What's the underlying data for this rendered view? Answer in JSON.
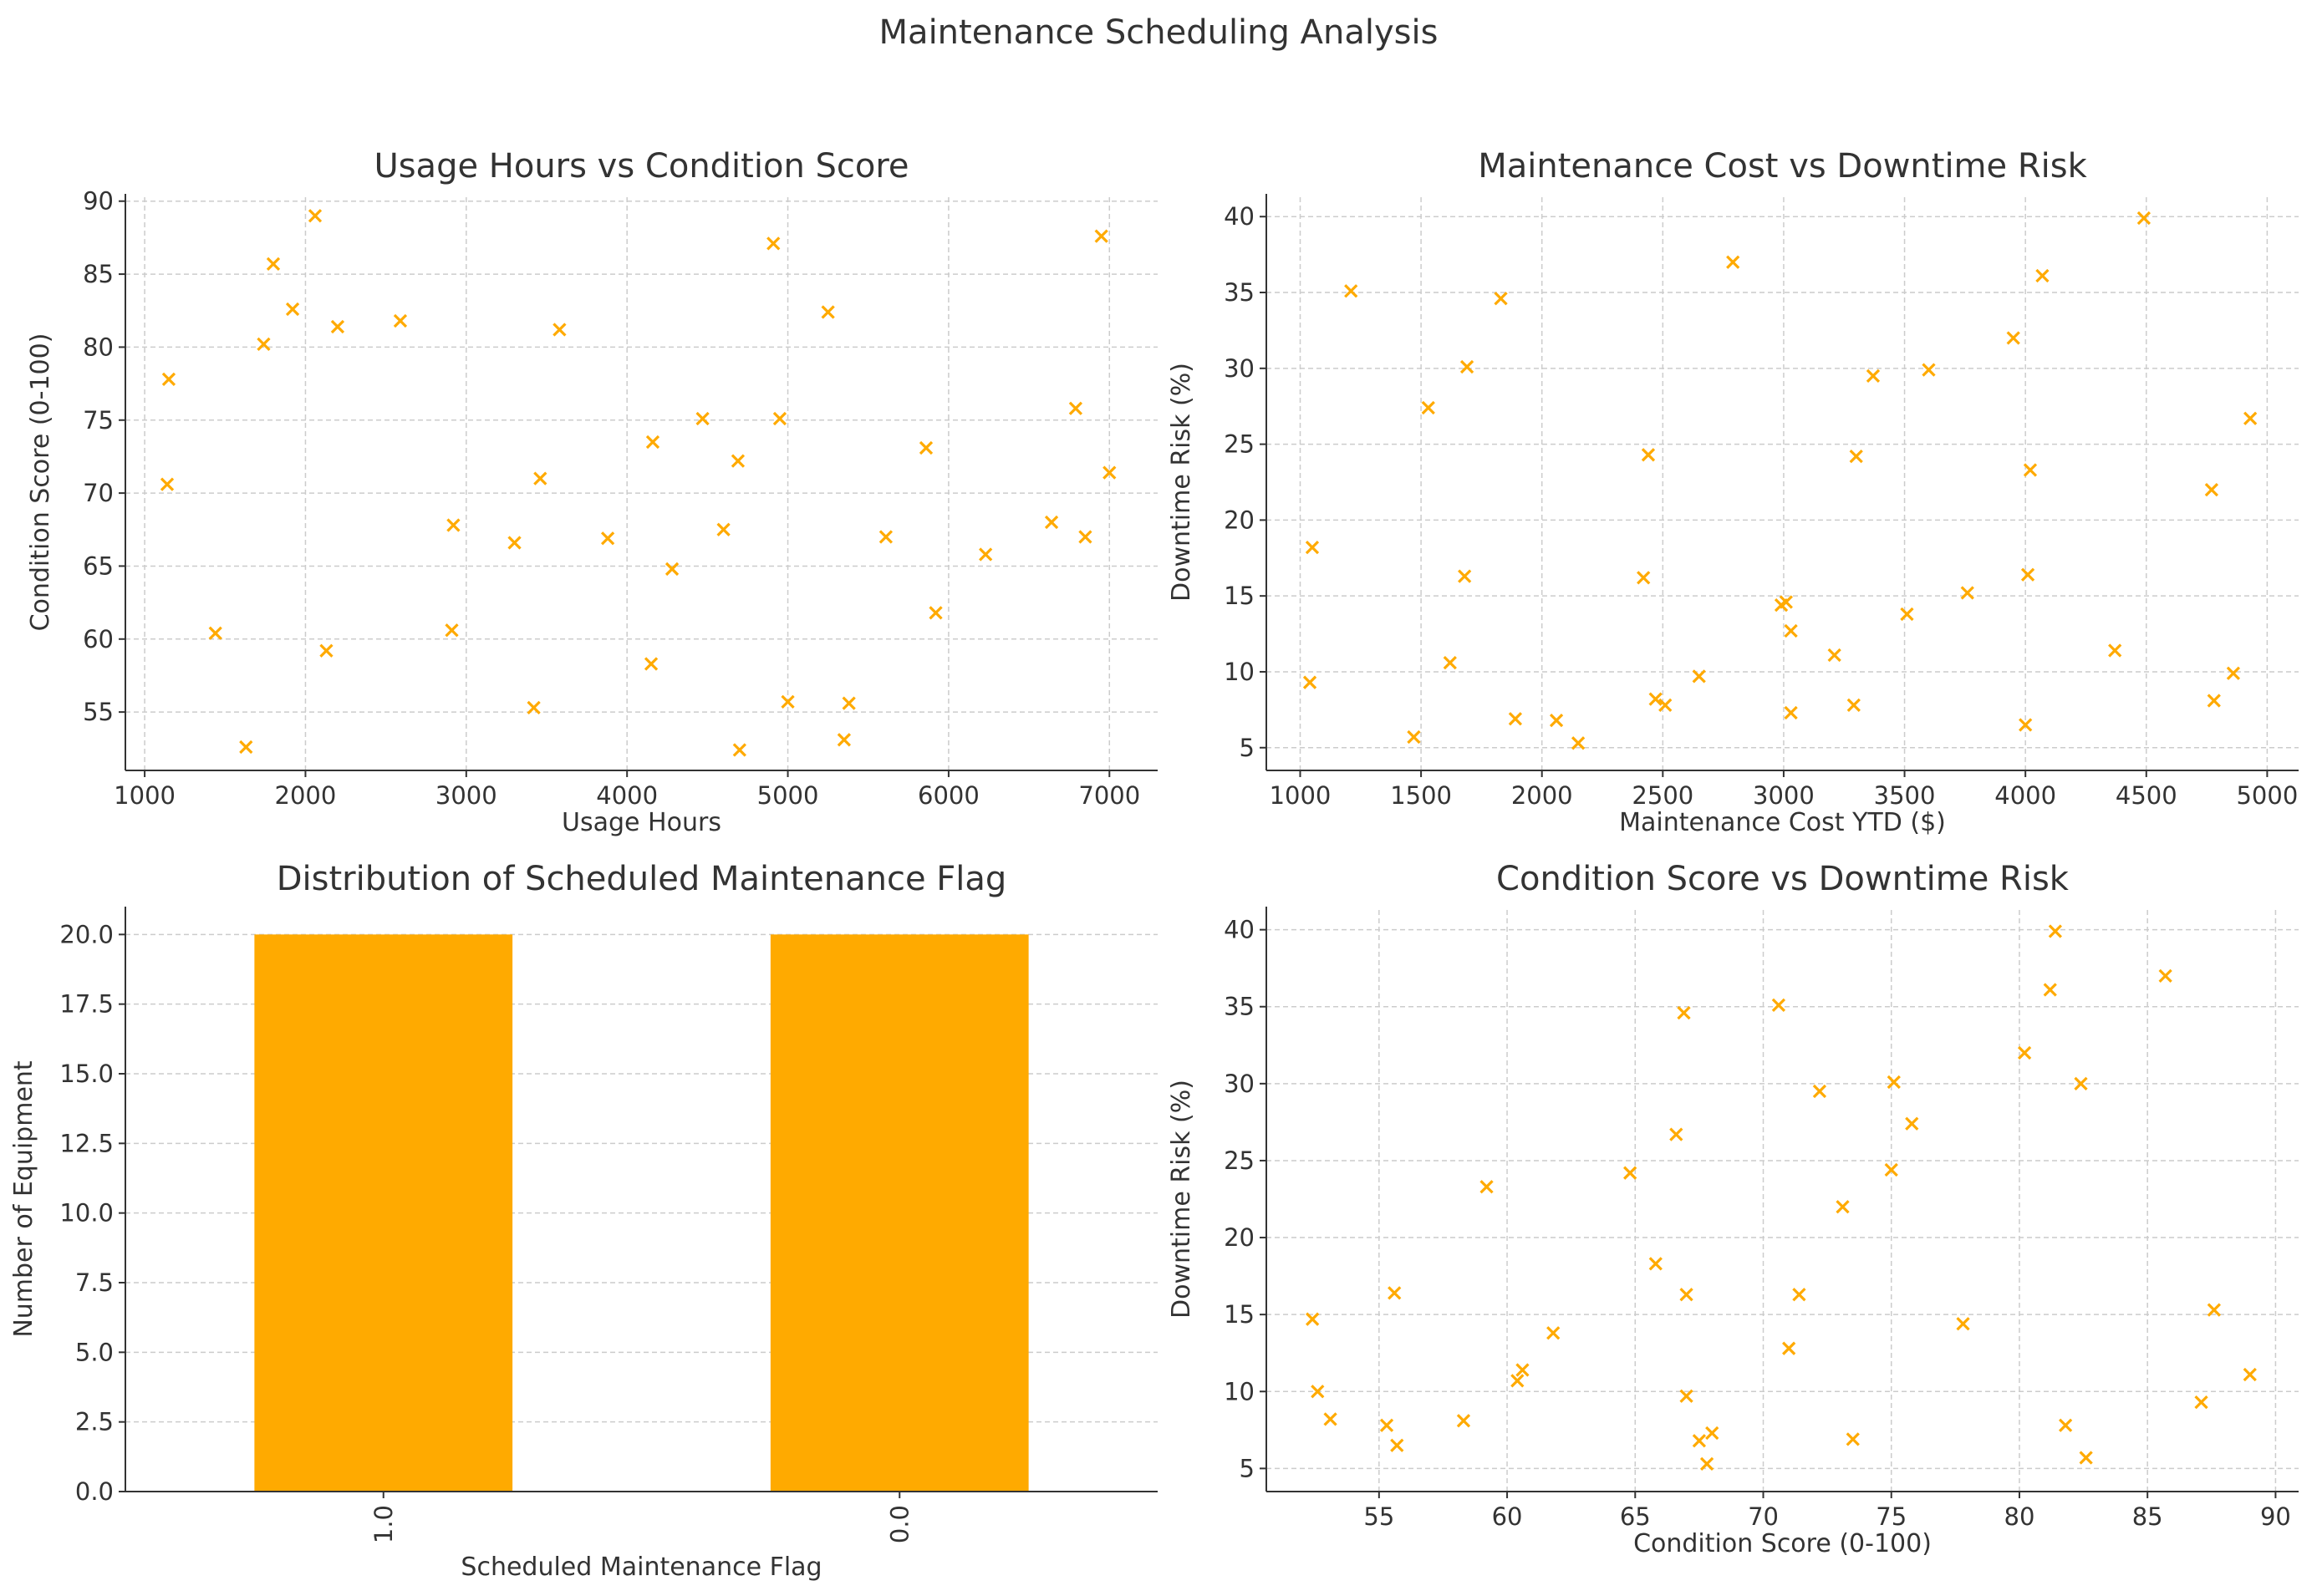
{
  "figure": {
    "title": "Maintenance Scheduling Analysis",
    "marker_color": "#FFAA00",
    "grid_color": "#cccccc",
    "axis_color": "#333333"
  },
  "chart_data": [
    {
      "type": "scatter",
      "title": "Usage Hours vs Condition Score",
      "xlabel": "Usage Hours",
      "ylabel": "Condition Score (0-100)",
      "xlim": [
        880,
        7300
      ],
      "ylim": [
        51.0,
        90.5
      ],
      "xticks": [
        1000,
        2000,
        3000,
        4000,
        5000,
        6000,
        7000
      ],
      "yticks": [
        55,
        60,
        65,
        70,
        75,
        80,
        85,
        90
      ],
      "grid": true,
      "marker": "x",
      "x": [
        1150,
        1140,
        1440,
        1630,
        1740,
        1800,
        1920,
        2060,
        2130,
        2200,
        2590,
        2920,
        2910,
        3300,
        3420,
        3460,
        3580,
        3880,
        4150,
        4160,
        4280,
        4470,
        4600,
        4690,
        4700,
        4910,
        4950,
        5000,
        5250,
        5350,
        5380,
        5610,
        5860,
        5920,
        6230,
        6640,
        6790,
        6850,
        6950,
        7000
      ],
      "y": [
        77.8,
        70.6,
        60.4,
        52.6,
        80.2,
        85.7,
        82.6,
        89.0,
        59.2,
        81.4,
        81.8,
        67.8,
        60.6,
        66.6,
        55.3,
        71.0,
        81.2,
        66.9,
        58.3,
        73.5,
        64.8,
        75.1,
        67.5,
        72.2,
        52.4,
        87.1,
        75.1,
        55.7,
        82.4,
        53.1,
        55.6,
        67.0,
        73.1,
        61.8,
        65.8,
        68.0,
        75.8,
        67.0,
        87.6,
        71.4
      ]
    },
    {
      "type": "scatter",
      "title": "Maintenance Cost vs Downtime Risk",
      "xlabel": "Maintenance Cost YTD ($)",
      "ylabel": "Downtime Risk (%)",
      "xlim": [
        860,
        5130
      ],
      "ylim": [
        3.5,
        41.5
      ],
      "xticks": [
        1000,
        1500,
        2000,
        2500,
        3000,
        3500,
        4000,
        4500,
        5000
      ],
      "yticks": [
        5,
        10,
        15,
        20,
        25,
        30,
        35,
        40
      ],
      "grid": true,
      "marker": "x",
      "x": [
        1040,
        1050,
        1210,
        1470,
        1530,
        1620,
        1680,
        1690,
        1830,
        1890,
        2060,
        2150,
        2420,
        2440,
        2470,
        2510,
        2650,
        2790,
        2990,
        3010,
        3030,
        3030,
        3210,
        3290,
        3300,
        3370,
        3510,
        3600,
        3760,
        3950,
        4000,
        4010,
        4020,
        4070,
        4370,
        4490,
        4770,
        4780,
        4860,
        4930
      ],
      "y": [
        9.3,
        18.2,
        35.1,
        5.7,
        27.4,
        10.6,
        16.3,
        30.1,
        34.6,
        6.9,
        6.8,
        5.3,
        16.2,
        24.3,
        8.2,
        7.8,
        9.7,
        37.0,
        14.4,
        14.6,
        12.7,
        7.3,
        11.1,
        7.8,
        24.2,
        29.5,
        13.8,
        29.9,
        15.2,
        32.0,
        6.5,
        16.4,
        23.3,
        36.1,
        11.4,
        39.9,
        22.0,
        8.1,
        9.9,
        26.7
      ]
    },
    {
      "type": "bar",
      "title": "Distribution of Scheduled Maintenance Flag",
      "xlabel": "Scheduled Maintenance Flag",
      "ylabel": "Number of Equipment",
      "categories": [
        "1.0",
        "0.0"
      ],
      "values": [
        20,
        20
      ],
      "ylim": [
        0,
        21
      ],
      "yticks": [
        "0.0",
        "2.5",
        "5.0",
        "7.5",
        "10.0",
        "12.5",
        "15.0",
        "17.5",
        "20.0"
      ],
      "grid": true,
      "bar_color": "#FFAA00"
    },
    {
      "type": "scatter",
      "title": "Condition Score vs Downtime Risk",
      "xlabel": "Condition Score (0-100)",
      "ylabel": "Downtime Risk (%)",
      "xlim": [
        50.6,
        90.9
      ],
      "ylim": [
        3.5,
        41.5
      ],
      "xticks": [
        55,
        60,
        65,
        70,
        75,
        80,
        85,
        90
      ],
      "yticks": [
        5,
        10,
        15,
        20,
        25,
        30,
        35,
        40
      ],
      "grid": true,
      "marker": "x",
      "x": [
        52.4,
        52.6,
        53.1,
        55.3,
        55.6,
        55.7,
        58.3,
        59.2,
        60.4,
        60.6,
        61.8,
        64.8,
        65.8,
        66.6,
        66.9,
        67.0,
        67.0,
        67.5,
        67.8,
        68.0,
        70.6,
        71.0,
        71.4,
        72.2,
        73.1,
        73.5,
        75.0,
        75.1,
        75.8,
        77.8,
        80.2,
        81.2,
        81.4,
        81.8,
        82.4,
        82.6,
        85.7,
        87.1,
        87.6,
        89.0
      ],
      "y": [
        14.7,
        10.0,
        8.2,
        7.8,
        16.4,
        6.5,
        8.1,
        23.3,
        10.7,
        11.4,
        13.8,
        24.2,
        18.3,
        26.7,
        34.6,
        16.3,
        9.7,
        6.8,
        5.3,
        7.3,
        35.1,
        12.8,
        16.3,
        29.5,
        22.0,
        6.9,
        24.4,
        30.1,
        27.4,
        14.4,
        32.0,
        36.1,
        39.9,
        7.8,
        30.0,
        5.7,
        37.0,
        9.3,
        15.3,
        11.1
      ]
    }
  ]
}
